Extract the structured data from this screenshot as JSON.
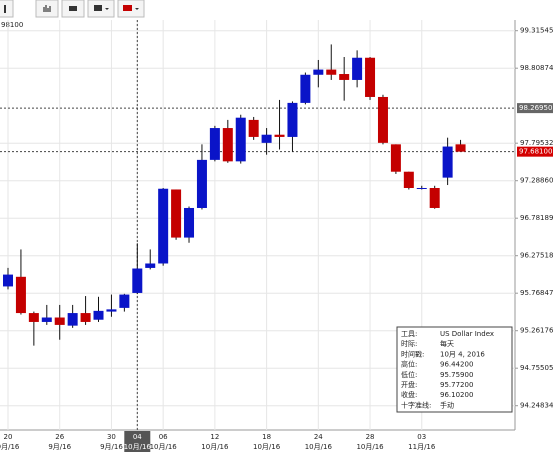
{
  "chart_data": {
    "type": "candlestick",
    "corner_label": "98100",
    "categories": [
      "20",
      null,
      null,
      null,
      "26",
      null,
      null,
      null,
      "30",
      null,
      "04",
      null,
      "06",
      null,
      null,
      null,
      "12",
      null,
      null,
      null,
      "18",
      null,
      null,
      null,
      "24",
      null,
      null,
      null,
      "28",
      null,
      null,
      null,
      "03",
      null,
      null,
      null
    ],
    "category_months": [
      "9月/16",
      null,
      null,
      null,
      "9月/16",
      null,
      null,
      null,
      "9月/16",
      null,
      "10月/16",
      null,
      "10月/16",
      null,
      null,
      null,
      "10月/16",
      null,
      null,
      null,
      "10月/16",
      null,
      null,
      null,
      "10月/16",
      null,
      null,
      null,
      "10月/16",
      null,
      null,
      null,
      "11月/16",
      null,
      null,
      null
    ],
    "open": [
      95.86,
      95.99,
      95.5,
      95.38,
      95.44,
      95.33,
      95.5,
      95.41,
      95.52,
      95.57,
      95.772,
      96.11,
      96.17,
      97.17,
      96.52,
      96.92,
      97.57,
      98.0,
      97.55,
      98.11,
      97.8,
      97.91,
      97.88,
      98.34,
      98.72,
      98.79,
      98.73,
      98.65,
      98.95,
      98.42,
      97.78,
      97.41,
      97.18,
      97.19,
      97.33,
      97.78
    ],
    "high": [
      96.11,
      96.36,
      95.52,
      95.61,
      95.61,
      95.61,
      95.73,
      95.72,
      95.75,
      95.76,
      96.442,
      96.36,
      97.19,
      97.17,
      96.94,
      97.78,
      98.03,
      98.11,
      98.18,
      98.15,
      98.0,
      98.38,
      98.36,
      98.75,
      98.92,
      99.13,
      98.96,
      99.05,
      98.96,
      98.45,
      97.78,
      97.41,
      97.22,
      97.22,
      97.87,
      97.84
    ],
    "low": [
      95.82,
      95.48,
      95.06,
      95.34,
      95.14,
      95.3,
      95.34,
      95.38,
      95.45,
      95.52,
      95.759,
      96.09,
      96.14,
      96.49,
      96.45,
      96.9,
      97.55,
      97.53,
      97.52,
      97.84,
      97.64,
      97.71,
      97.68,
      98.32,
      98.55,
      98.65,
      98.37,
      98.55,
      98.38,
      97.78,
      97.38,
      97.17,
      97.17,
      96.91,
      97.23,
      97.68
    ],
    "close": [
      96.02,
      95.5,
      95.38,
      95.44,
      95.34,
      95.5,
      95.38,
      95.53,
      95.55,
      95.75,
      96.102,
      96.17,
      97.18,
      96.52,
      96.92,
      97.57,
      98.0,
      97.55,
      98.14,
      97.88,
      97.91,
      97.88,
      98.34,
      98.72,
      98.79,
      98.72,
      98.65,
      98.95,
      98.42,
      97.8,
      97.41,
      97.19,
      97.19,
      96.92,
      97.75,
      97.681
    ],
    "up_color": "#0a14c8",
    "down_color": "#c40000",
    "ylim": [
      93.92,
      99.46
    ],
    "yticks": [
      {
        "value": 99.31545,
        "label": "99.31545"
      },
      {
        "value": 98.80874,
        "label": "98.80874"
      },
      {
        "value": 97.79532,
        "label": "97.79532"
      },
      {
        "value": 97.2886,
        "label": "97.28860"
      },
      {
        "value": 96.78189,
        "label": "96.78189"
      },
      {
        "value": 96.27518,
        "label": "96.27518"
      },
      {
        "value": 95.76847,
        "label": "95.76847"
      },
      {
        "value": 95.26176,
        "label": "95.26176"
      },
      {
        "value": 94.75505,
        "label": "94.75505"
      },
      {
        "value": 94.24834,
        "label": "94.24834"
      }
    ],
    "crosshair_index": 10,
    "crosshair_price": {
      "value": 98.2695,
      "label": "98.26950"
    },
    "last_price": {
      "value": 97.681,
      "label": "97.68100"
    },
    "grid": true
  },
  "info_box": {
    "rows": [
      [
        "工具:",
        "US Dollar Index"
      ],
      [
        "时际:",
        "每天"
      ],
      [
        "时间戳:",
        "10月 4, 2016"
      ],
      [
        "高位:",
        "96.44200"
      ],
      [
        "低位:",
        "95.75900"
      ],
      [
        "开盘:",
        "95.77200"
      ],
      [
        "收盘:",
        "96.10200"
      ],
      [
        "十字准线:",
        "手动"
      ]
    ]
  }
}
